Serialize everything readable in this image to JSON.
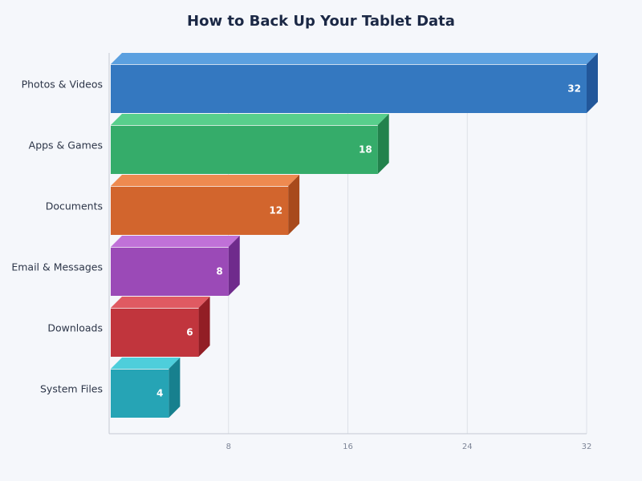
{
  "title": "How to Back Up Your Tablet Data",
  "chart_data": {
    "type": "bar",
    "orientation": "horizontal",
    "title": "How to Back Up Your Tablet Data",
    "categories": [
      "Photos & Videos",
      "Apps & Games",
      "Documents",
      "Email & Messages",
      "Downloads",
      "System Files"
    ],
    "values": [
      32,
      18,
      12,
      8,
      6,
      4
    ],
    "colors": [
      "#3478c0",
      "#35ac6a",
      "#d2652d",
      "#9b4ab7",
      "#c1353d",
      "#26a4b5"
    ],
    "top_colors": [
      "#5ba0e0",
      "#58cf8c",
      "#ee8a50",
      "#c071d8",
      "#e05a62",
      "#4ecedb"
    ],
    "side_colors": [
      "#22579a",
      "#22824c",
      "#a84a1c",
      "#6f2b8c",
      "#921e25",
      "#17808e"
    ],
    "xlabel": "",
    "ylabel": "",
    "xticks": [
      8,
      16,
      24,
      32
    ],
    "xlim": [
      0,
      32
    ],
    "grid": true,
    "legend": "none"
  }
}
